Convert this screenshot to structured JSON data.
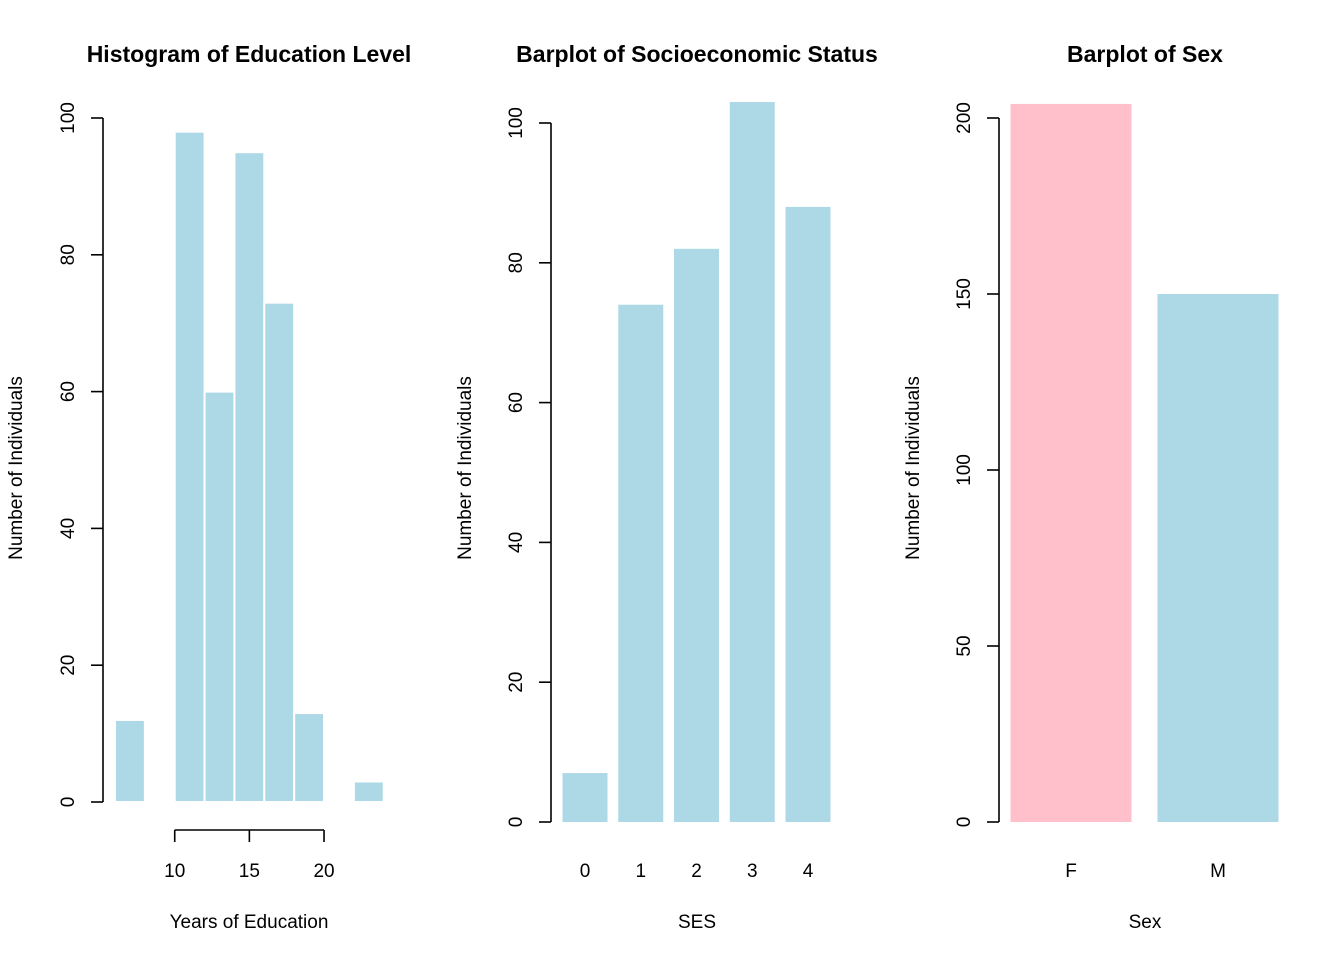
{
  "colors": {
    "bar": "#ADD8E6",
    "bar_alt": "#FFC0CB",
    "axis": "#000000",
    "background": "#FFFFFF"
  },
  "chart_data": [
    {
      "type": "bar",
      "variant": "histogram",
      "title": "Histogram of Education Level",
      "xlabel": "Years of Education",
      "ylabel": "Number of Individuals",
      "bins": [
        {
          "from": 6,
          "to": 8,
          "count": 12
        },
        {
          "from": 8,
          "to": 10,
          "count": 0
        },
        {
          "from": 10,
          "to": 12,
          "count": 98
        },
        {
          "from": 12,
          "to": 14,
          "count": 60
        },
        {
          "from": 14,
          "to": 16,
          "count": 95
        },
        {
          "from": 16,
          "to": 18,
          "count": 73
        },
        {
          "from": 18,
          "to": 20,
          "count": 13
        },
        {
          "from": 20,
          "to": 22,
          "count": 0
        },
        {
          "from": 22,
          "to": 24,
          "count": 3
        }
      ],
      "xlim": [
        6,
        24
      ],
      "ylim": [
        0,
        100
      ],
      "xticks": [
        10,
        15,
        20
      ],
      "yticks": [
        0,
        20,
        40,
        60,
        80,
        100
      ],
      "grid": false
    },
    {
      "type": "bar",
      "title": "Barplot of Socioeconomic Status",
      "xlabel": "SES",
      "ylabel": "Number of Individuals",
      "categories": [
        "0",
        "1",
        "2",
        "3",
        "4"
      ],
      "values": [
        7,
        74,
        82,
        103,
        88
      ],
      "ylim": [
        0,
        100
      ],
      "yticks": [
        0,
        20,
        40,
        60,
        80,
        100
      ],
      "grid": false
    },
    {
      "type": "bar",
      "title": "Barplot of Sex",
      "xlabel": "Sex",
      "ylabel": "Number of Individuals",
      "categories": [
        "F",
        "M"
      ],
      "values": [
        204,
        150
      ],
      "bar_colors": [
        "#FFC0CB",
        "#ADD8E6"
      ],
      "ylim": [
        0,
        200
      ],
      "yticks": [
        0,
        50,
        100,
        150,
        200
      ],
      "grid": false
    }
  ]
}
